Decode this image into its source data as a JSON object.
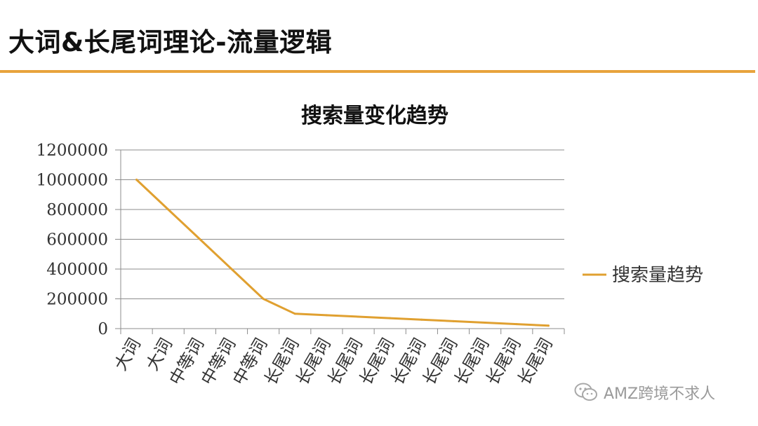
{
  "slide": {
    "title": "大词&长尾词理论-流量逻辑",
    "accent_color": "#E8A33C"
  },
  "watermark": {
    "text": "AMZ跨境不求人",
    "icon": "wechat-icon"
  },
  "chart_data": {
    "type": "line",
    "title": "搜索量变化趋势",
    "xlabel": "",
    "ylabel": "",
    "categories": [
      "大词",
      "大词",
      "中等词",
      "中等词",
      "中等词",
      "长尾词",
      "长尾词",
      "长尾词",
      "长尾词",
      "长尾词",
      "长尾词",
      "长尾词",
      "长尾词",
      "长尾词"
    ],
    "series": [
      {
        "name": "搜索量趋势",
        "color": "#E0A030",
        "values": [
          1000000,
          800000,
          600000,
          400000,
          200000,
          100000,
          90000,
          80000,
          70000,
          60000,
          50000,
          40000,
          30000,
          20000
        ]
      }
    ],
    "ylim": [
      0,
      1200000
    ],
    "yticks": [
      0,
      200000,
      400000,
      600000,
      800000,
      1000000,
      1200000
    ],
    "grid": true,
    "legend": "right"
  }
}
